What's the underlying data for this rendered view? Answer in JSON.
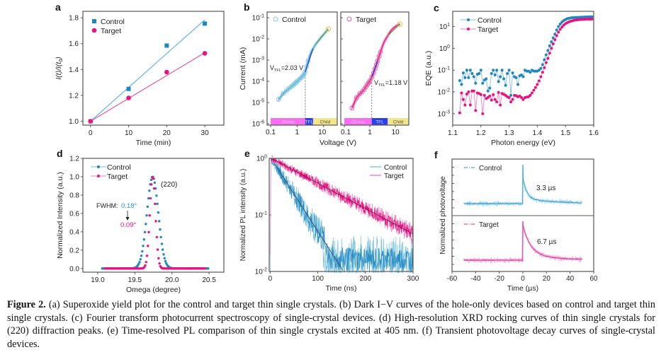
{
  "colors": {
    "control": "#1f86c1",
    "target": "#e8137f",
    "control_light": "#8fd0e6",
    "target_light": "#f07cbd",
    "axis": "#555555",
    "fit_dark": "#2a3f6a"
  },
  "caption": {
    "label": "Figure 2.",
    "text": " (a) Superoxide yield plot for the control and target thin single crystals. (b) Dark I−V curves of the hole-only devices based on control and target thin single crystals. (c) Fourier transform photocurrent spectroscopy of single-crystal devices. (d) High-resolution XRD rocking curves of thin single crystals for (220) diffraction peaks. (e) Time-resolved PL comparison of thin single crystals excited at 405 nm. (f) Transient photovoltage decay curves of single-crystal devices."
  },
  "chart_data": [
    {
      "panel": "a",
      "type": "scatter",
      "title": "",
      "xlabel": "Time (min)",
      "ylabel": "I(t)/I(t0)",
      "xlim": [
        -2,
        35
      ],
      "ylim": [
        0.97,
        1.85
      ],
      "xticks": [
        0,
        10,
        20,
        30
      ],
      "yticks": [
        1.0,
        1.2,
        1.4,
        1.6,
        1.8
      ],
      "legend": "top-left",
      "series": [
        {
          "name": "Control",
          "marker": "square",
          "x": [
            0,
            10,
            20,
            30
          ],
          "y": [
            1.0,
            1.25,
            1.585,
            1.755
          ],
          "fit": [
            [
              0,
              1.0
            ],
            [
              30,
              1.785
            ]
          ]
        },
        {
          "name": "Target",
          "marker": "circle",
          "x": [
            0,
            10,
            20,
            30
          ],
          "y": [
            1.0,
            1.18,
            1.38,
            1.525
          ],
          "fit": [
            [
              0,
              1.0
            ],
            [
              30,
              1.53
            ]
          ]
        }
      ]
    },
    {
      "panel": "b",
      "type": "scatter",
      "xlabel": "Voltage (V)",
      "ylabel": "Current (mA)",
      "xscale": "log",
      "yscale": "log",
      "xlim": [
        0.1,
        20
      ],
      "ylim": [
        1e-06,
        0.1
      ],
      "xticks": [
        "0.1",
        "1",
        "10"
      ],
      "yticks": [
        "10-6",
        "10-5",
        "10-4",
        "10-3",
        "10-2",
        "10-1"
      ],
      "subplots": [
        {
          "name": "Control",
          "vtfl_label": "V",
          "vtfl_sub": "TFL",
          "vtfl_value": "=2.03 V",
          "vtfl": 2.03,
          "regions": [
            {
              "label": "Ohmic",
              "from": 0.1,
              "to": 2.03
            },
            {
              "label": "TFL",
              "from": 2.03,
              "to": 4.0
            },
            {
              "label": "Child",
              "from": 4.0,
              "to": 20
            }
          ],
          "x": [
            0.2,
            0.3,
            0.4,
            0.5,
            0.6,
            0.7,
            0.8,
            0.9,
            1.0,
            1.2,
            1.4,
            1.6,
            1.8,
            2.0,
            2.3,
            2.6,
            3.0,
            3.5,
            4.0,
            5,
            6,
            7,
            8,
            10,
            12,
            15
          ],
          "y": [
            1.4e-05,
            2.7e-05,
            3.7e-05,
            4.6e-05,
            5.6e-05,
            6.5e-05,
            7.6e-05,
            8.7e-05,
            0.0001,
            0.00012,
            0.000145,
            0.00017,
            0.00021,
            0.00028,
            0.0005,
            0.0009,
            0.0016,
            0.0026,
            0.0035,
            0.0055,
            0.0075,
            0.0095,
            0.012,
            0.016,
            0.021,
            0.029
          ]
        },
        {
          "name": "Target",
          "vtfl_label": "V",
          "vtfl_sub": "TFL",
          "vtfl_value": "=1.18 V",
          "vtfl": 1.18,
          "regions": [
            {
              "label": "Ohmic",
              "from": 0.1,
              "to": 1.18
            },
            {
              "label": "TFL",
              "from": 1.18,
              "to": 5.0
            },
            {
              "label": "Child",
              "from": 5.0,
              "to": 20
            }
          ],
          "x": [
            0.2,
            0.3,
            0.4,
            0.5,
            0.6,
            0.7,
            0.8,
            0.9,
            1.0,
            1.2,
            1.4,
            1.6,
            1.8,
            2.0,
            2.3,
            2.6,
            3.0,
            3.5,
            4.0,
            5,
            6,
            7,
            8,
            10,
            12,
            15
          ],
          "y": [
            5.5e-06,
            1.7e-05,
            2.6e-05,
            3.2e-05,
            4.2e-05,
            5.5e-05,
            7e-05,
            8.5e-05,
            0.000105,
            0.00016,
            0.00025,
            0.0004,
            0.0006,
            0.0009,
            0.0015,
            0.0024,
            0.004,
            0.0065,
            0.009,
            0.014,
            0.02,
            0.026,
            0.031,
            0.038,
            0.044,
            0.05
          ]
        }
      ]
    },
    {
      "panel": "c",
      "type": "line",
      "xlabel": "Photon energy (eV)",
      "ylabel": "EQE (a.u.)",
      "yscale": "log",
      "xlim": [
        1.1,
        1.6
      ],
      "ylim": [
        0.0003,
        50
      ],
      "xticks": [
        "1.1",
        "1.2",
        "1.3",
        "1.4",
        "1.5",
        "1.6"
      ],
      "yticks": [
        "10-3",
        "10-2",
        "10-1",
        "100",
        "101"
      ],
      "legend": "top-left",
      "series": [
        {
          "name": "Control",
          "x_start": 1.125,
          "x_step": 0.00625,
          "y": [
            0.033,
            0.022,
            0.075,
            0.045,
            0.1,
            0.045,
            0.1,
            0.07,
            0.05,
            0.025,
            0.065,
            0.07,
            0.1,
            0.025,
            0.035,
            0.04,
            0.011,
            0.015,
            0.07,
            0.1,
            0.06,
            0.1,
            0.03,
            0.05,
            0.1,
            0.04,
            0.02,
            0.07,
            0.1,
            0.007,
            0.075,
            0.05,
            0.045,
            0.022,
            0.055,
            0.06,
            0.05,
            0.1,
            0.09,
            0.09,
            0.08,
            0.1,
            0.09,
            0.09,
            0.09,
            0.1,
            0.12,
            0.18,
            0.3,
            0.5,
            0.8,
            1.3,
            2.0,
            3.0,
            4.5,
            7,
            10,
            13,
            16,
            19,
            21,
            23,
            24,
            25,
            25.5,
            26,
            26,
            26.5,
            26.5,
            27,
            27,
            27.5,
            27.5,
            28,
            28,
            28
          ]
        },
        {
          "name": "Target",
          "x_start": 1.125,
          "x_step": 0.00625,
          "y": [
            0.0011,
            0.009,
            0.0045,
            0.0025,
            0.008,
            0.01,
            0.0025,
            0.011,
            0.011,
            0.0014,
            0.009,
            0.0085,
            0.0075,
            0.001,
            0.007,
            0.005,
            0.0055,
            0.0065,
            0.0042,
            0.0075,
            0.0045,
            0.0035,
            0.0095,
            0.0025,
            0.0085,
            0.0078,
            0.007,
            0.006,
            0.0055,
            0.0035,
            0.0045,
            0.007,
            0.0068,
            0.006,
            0.0065,
            0.0055,
            0.0045,
            0.0055,
            0.0058,
            0.006,
            0.007,
            0.009,
            0.012,
            0.016,
            0.022,
            0.032,
            0.05,
            0.08,
            0.13,
            0.22,
            0.35,
            0.6,
            1.0,
            1.6,
            2.5,
            3.8,
            5.5,
            7.5,
            9.5,
            11.5,
            13.5,
            15,
            16.5,
            17.5,
            18.5,
            19.5,
            20,
            20.5,
            21,
            21,
            21.5,
            21.5,
            22,
            22,
            22,
            22
          ]
        }
      ]
    },
    {
      "panel": "d",
      "type": "line",
      "xlabel": "Omega (degree)",
      "ylabel": "Normalized Intensity (a.u.)",
      "xlim": [
        18.8,
        20.7
      ],
      "ylim": [
        -0.04,
        1.2
      ],
      "xticks": [
        "19.0",
        "19.5",
        "20.0",
        "20.5"
      ],
      "yticks": [
        "0.0",
        "0.2",
        "0.4",
        "0.6",
        "0.8",
        "1.0",
        "1.2"
      ],
      "legend": "top-left",
      "peak_label": "(220)",
      "fwhm_label": "FWHM:",
      "annotations": {
        "control_fwhm": "0.18°",
        "target_fwhm": "0.09°"
      },
      "series": [
        {
          "name": "Control",
          "center": 19.74,
          "fwhm": 0.18,
          "x_range": [
            19.06,
            20.49
          ]
        },
        {
          "name": "Target",
          "center": 19.74,
          "fwhm": 0.09,
          "x_range": [
            19.1,
            20.45
          ]
        }
      ]
    },
    {
      "panel": "e",
      "type": "line",
      "xlabel": "Time (ns)",
      "ylabel": "Normalized PL intensity (a.u.)",
      "yscale": "log",
      "xlim": [
        -2,
        300
      ],
      "ylim": [
        0.01,
        1
      ],
      "xticks": [
        "0",
        "100",
        "200",
        "300"
      ],
      "yticks": [
        "10-2",
        "10-1",
        "100"
      ],
      "legend": "top-right",
      "series": [
        {
          "name": "Control",
          "decay_tau_ns": 33,
          "floor": 0.01
        },
        {
          "name": "Target",
          "decay_tau_ns": 97,
          "floor": 0.01
        }
      ]
    },
    {
      "panel": "f",
      "type": "line",
      "xlabel": "Time (µs)",
      "ylabel": "Normalized photovoltage",
      "xlim": [
        -60,
        60
      ],
      "xticks": [
        "-60",
        "-40",
        "-20",
        "0",
        "20",
        "40",
        "60"
      ],
      "series": [
        {
          "name": "Control",
          "lifetime_label": "3.3 µs",
          "tau_us": 3.3,
          "x_range": [
            -50,
            50
          ]
        },
        {
          "name": "Target",
          "lifetime_label": "6.7 µs",
          "tau_us": 6.7,
          "x_range": [
            -50,
            50
          ]
        }
      ]
    }
  ]
}
